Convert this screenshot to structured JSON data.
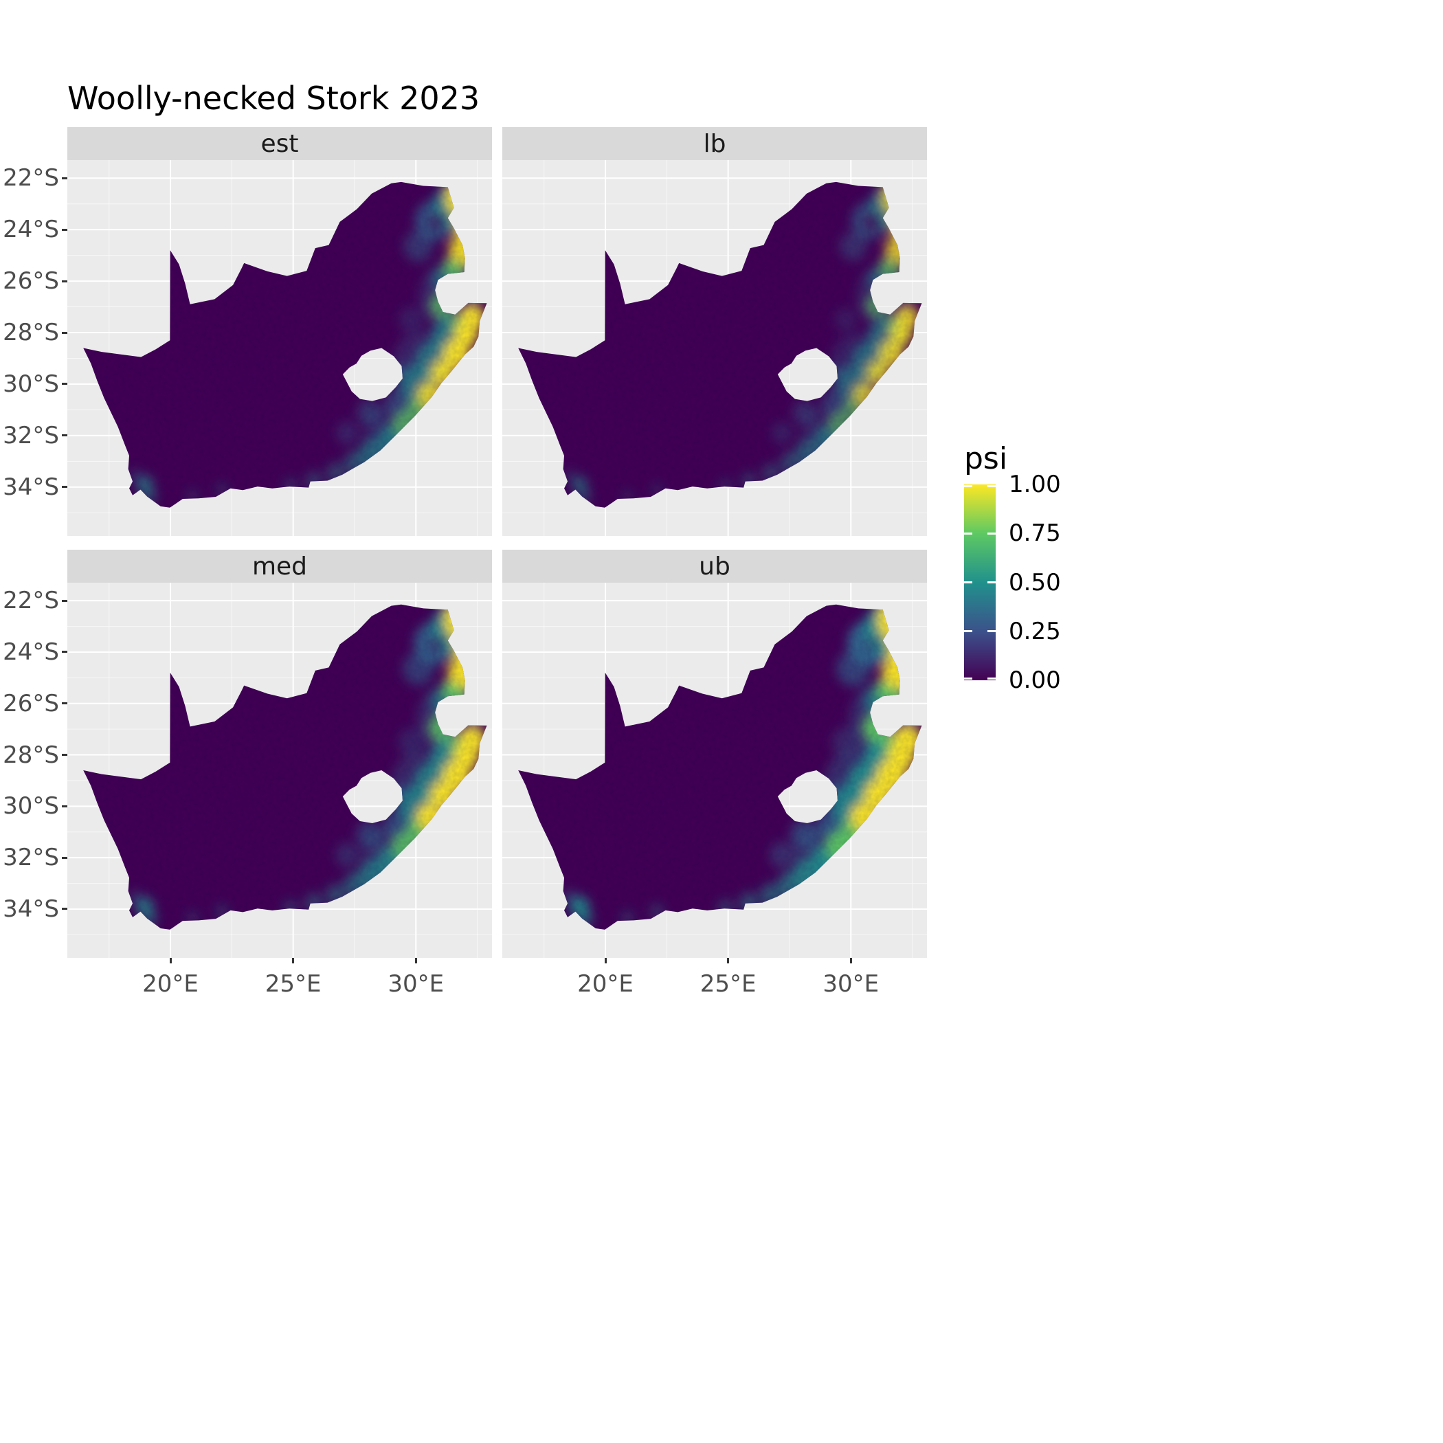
{
  "title": "Woolly-necked Stork 2023",
  "colors": {
    "background": "#ffffff",
    "panel_bg": "#ebebeb",
    "strip_bg": "#d9d9d9",
    "grid": "#ffffff",
    "axis_text": "#4d4d4d",
    "map_base": "#440154"
  },
  "viridis": {
    "0.00": "#440154",
    "0.25": "#3b528b",
    "0.50": "#21918c",
    "0.75": "#5ec962",
    "1.00": "#fde725"
  },
  "legend": {
    "title": "psi",
    "tick_labels": [
      "1.00",
      "0.75",
      "0.50",
      "0.25",
      "0.00"
    ],
    "tick_values": [
      1.0,
      0.75,
      0.5,
      0.25,
      0.0
    ]
  },
  "axes": {
    "y_tick_labels": [
      "22°S",
      "24°S",
      "26°S",
      "28°S",
      "30°S",
      "32°S",
      "34°S"
    ],
    "y_tick_values": [
      22,
      24,
      26,
      28,
      30,
      32,
      34
    ],
    "x_tick_labels": [
      "20°E",
      "25°E",
      "30°E"
    ],
    "x_tick_values": [
      20,
      25,
      30
    ]
  },
  "facets": [
    {
      "label": "est",
      "intensity": 1.0
    },
    {
      "label": "lb",
      "intensity": 0.85
    },
    {
      "label": "med",
      "intensity": 1.15
    },
    {
      "label": "ub",
      "intensity": 1.35
    }
  ],
  "chart_data": {
    "type": "heatmap",
    "title": "Woolly-necked Stork 2023",
    "legend_title": "psi",
    "value_range": [
      0,
      1
    ],
    "facet_labels": [
      "est",
      "lb",
      "med",
      "ub"
    ],
    "region": "South Africa (Lesotho shown as hole, Eswatini notch on east border)",
    "x": {
      "ticks": [
        "20°E",
        "25°E",
        "30°E"
      ],
      "range_deg_E": [
        15.8,
        33.1
      ]
    },
    "y": {
      "ticks": [
        "22°S",
        "24°S",
        "26°S",
        "28°S",
        "30°S",
        "32°S",
        "34°S"
      ],
      "range_deg_S": [
        21.3,
        35.9
      ]
    },
    "baseline_psi": 0.0,
    "description": "Occupancy probability psi is near 0 (dark purple) over the western and central interior in all four facets. High psi (yellow-green) occurs along the northeastern Lowveld (approx. 31-33°E, 22-25.5°S) and the eastern KwaZulu-Natal coastal belt down the Eastern Cape coast, with small moderate patches near the southwestern Cape (~18.5-19.5°E, 33.5-34.5°S). Brightness ranks lb < est < med < ub.",
    "hotspot_format": [
      "lon_E",
      "lat_S",
      "radius_deg",
      "level",
      "opacity"
    ],
    "level_psi_approx": {
      "high": 0.95,
      "med-high": 0.7,
      "med": 0.5,
      "low": 0.25,
      "core-dark": 0.05
    },
    "hotspots": [
      [
        31.35,
        26.6,
        1.25,
        "low",
        0.32
      ],
      [
        30.35,
        29.2,
        1.3,
        "low",
        0.33
      ],
      [
        28.9,
        31.9,
        1.05,
        "low",
        0.3
      ],
      [
        30.75,
        23.65,
        0.78,
        "low",
        0.8
      ],
      [
        30.1,
        24.65,
        0.6,
        "low",
        0.5
      ],
      [
        29.35,
        30.7,
        0.6,
        "low",
        0.6
      ],
      [
        29.55,
        29.6,
        0.45,
        "low",
        0.45
      ],
      [
        28.1,
        31.1,
        0.5,
        "low",
        0.5
      ],
      [
        27.2,
        31.9,
        0.45,
        "low",
        0.35
      ],
      [
        18.55,
        33.55,
        0.25,
        "low",
        0.4
      ],
      [
        29.8,
        27.5,
        0.5,
        "low",
        0.28
      ],
      [
        31.7,
        23.1,
        1.0,
        "med",
        0.85
      ],
      [
        31.45,
        28.15,
        0.8,
        "med",
        0.8
      ],
      [
        30.75,
        29.1,
        0.78,
        "med",
        0.75
      ],
      [
        30.05,
        30.0,
        0.7,
        "med",
        0.7
      ],
      [
        31.05,
        25.9,
        0.45,
        "med",
        0.6
      ],
      [
        28.95,
        32.05,
        0.5,
        "med",
        0.75
      ],
      [
        28.25,
        32.65,
        0.55,
        "med",
        0.65
      ],
      [
        27.55,
        33.05,
        0.45,
        "med",
        0.55
      ],
      [
        26.75,
        33.45,
        0.4,
        "med",
        0.45
      ],
      [
        25.85,
        33.75,
        0.35,
        "med",
        0.4
      ],
      [
        24.9,
        33.95,
        0.3,
        "med",
        0.3
      ],
      [
        22.1,
        34.1,
        0.25,
        "med",
        0.3
      ],
      [
        20.9,
        34.35,
        0.25,
        "med",
        0.25
      ],
      [
        18.95,
        33.9,
        0.35,
        "med",
        0.7
      ],
      [
        19.15,
        34.35,
        0.3,
        "med",
        0.5
      ],
      [
        31.6,
        25.45,
        0.5,
        "med-high",
        0.9
      ],
      [
        31.05,
        26.95,
        0.5,
        "med-high",
        0.8
      ],
      [
        30.1,
        30.95,
        0.45,
        "med-high",
        0.85
      ],
      [
        29.55,
        31.55,
        0.5,
        "med-high",
        0.8
      ],
      [
        31.9,
        27.75,
        0.5,
        "med-high",
        0.85
      ],
      [
        32.05,
        22.75,
        0.85,
        "high",
        1.0
      ],
      [
        32.2,
        23.9,
        0.6,
        "high",
        1.0
      ],
      [
        31.95,
        24.75,
        0.6,
        "high",
        0.95
      ],
      [
        32.3,
        27.4,
        0.5,
        "high",
        1.0
      ],
      [
        32.05,
        28.05,
        0.5,
        "high",
        1.0
      ],
      [
        31.65,
        28.8,
        0.55,
        "high",
        1.0
      ],
      [
        31.1,
        29.55,
        0.5,
        "high",
        0.95
      ],
      [
        30.55,
        30.4,
        0.5,
        "high",
        0.9
      ],
      [
        30.85,
        23.7,
        0.38,
        "core-dark",
        0.95
      ]
    ]
  }
}
